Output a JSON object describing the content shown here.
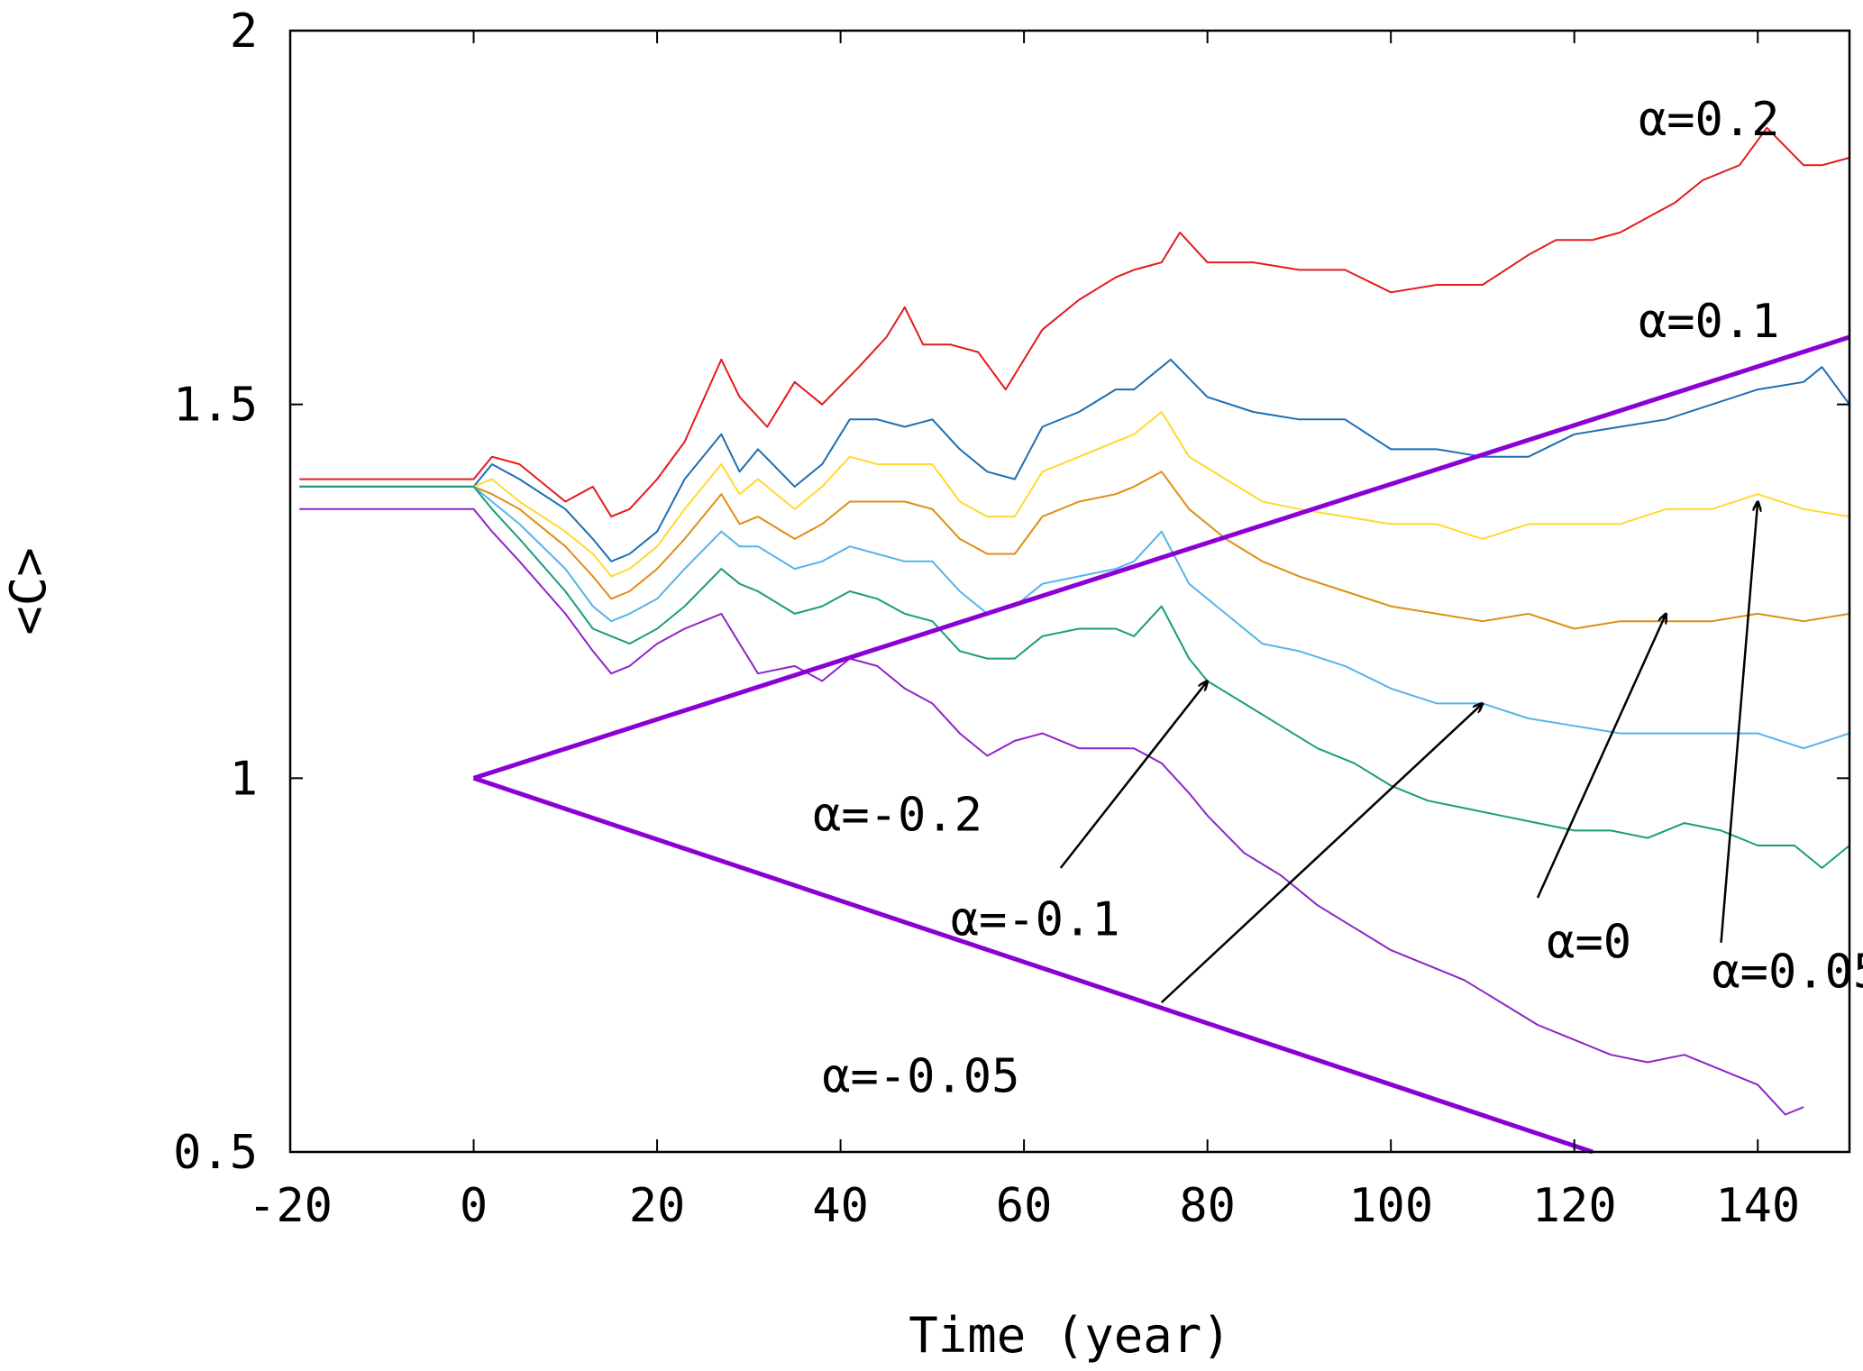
{
  "chart_data": {
    "type": "line",
    "title": "",
    "xlabel": "Time (year)",
    "ylabel": "<C>",
    "xlim": [
      -20,
      150
    ],
    "ylim": [
      0.5,
      2
    ],
    "xticks": [
      -20,
      0,
      20,
      40,
      60,
      80,
      100,
      120,
      140
    ],
    "yticks": [
      0.5,
      1,
      1.5,
      2
    ],
    "xtick_labels": [
      "-20",
      "0",
      "20",
      "40",
      "60",
      "80",
      "100",
      "120",
      "140"
    ],
    "ytick_labels": [
      "0.5",
      "1",
      "1.5",
      "2"
    ],
    "grid": false,
    "series": [
      {
        "name": "α=0.2",
        "color": "#e41a1c",
        "x": [
          -19,
          -10,
          0,
          2,
          5,
          10,
          13,
          15,
          17,
          20,
          23,
          27,
          29,
          32,
          35,
          38,
          42,
          45,
          47,
          49,
          52,
          55,
          58,
          62,
          66,
          70,
          72,
          75,
          77,
          80,
          85,
          90,
          95,
          100,
          105,
          110,
          115,
          118,
          122,
          125,
          128,
          131,
          134,
          138,
          141,
          145,
          147,
          150
        ],
        "values": [
          1.4,
          1.4,
          1.4,
          1.43,
          1.42,
          1.37,
          1.39,
          1.35,
          1.36,
          1.4,
          1.45,
          1.56,
          1.51,
          1.47,
          1.53,
          1.5,
          1.55,
          1.59,
          1.63,
          1.58,
          1.58,
          1.57,
          1.52,
          1.6,
          1.64,
          1.67,
          1.68,
          1.69,
          1.73,
          1.69,
          1.69,
          1.68,
          1.68,
          1.65,
          1.66,
          1.66,
          1.7,
          1.72,
          1.72,
          1.73,
          1.75,
          1.77,
          1.8,
          1.82,
          1.87,
          1.82,
          1.82,
          1.83
        ]
      },
      {
        "name": "α=0.1",
        "color": "#1b6fb5",
        "x": [
          -19,
          -10,
          0,
          2,
          5,
          10,
          13,
          15,
          17,
          20,
          23,
          27,
          29,
          31,
          35,
          38,
          41,
          44,
          47,
          50,
          53,
          56,
          59,
          62,
          66,
          70,
          72,
          76,
          80,
          85,
          90,
          95,
          100,
          105,
          110,
          115,
          120,
          125,
          130,
          135,
          140,
          145,
          147,
          150
        ],
        "values": [
          1.39,
          1.39,
          1.39,
          1.42,
          1.4,
          1.36,
          1.32,
          1.29,
          1.3,
          1.33,
          1.4,
          1.46,
          1.41,
          1.44,
          1.39,
          1.42,
          1.48,
          1.48,
          1.47,
          1.48,
          1.44,
          1.41,
          1.4,
          1.47,
          1.49,
          1.52,
          1.52,
          1.56,
          1.51,
          1.49,
          1.48,
          1.48,
          1.44,
          1.44,
          1.43,
          1.43,
          1.46,
          1.47,
          1.48,
          1.5,
          1.52,
          1.53,
          1.55,
          1.5
        ]
      },
      {
        "name": "α=0.05",
        "color": "#ffd92f",
        "x": [
          -19,
          -10,
          0,
          2,
          5,
          10,
          13,
          15,
          17,
          20,
          23,
          27,
          29,
          31,
          35,
          38,
          41,
          44,
          47,
          50,
          53,
          56,
          59,
          62,
          66,
          70,
          72,
          75,
          78,
          82,
          86,
          90,
          95,
          100,
          105,
          110,
          115,
          120,
          125,
          130,
          135,
          140,
          145,
          150
        ],
        "values": [
          1.39,
          1.39,
          1.39,
          1.4,
          1.37,
          1.33,
          1.3,
          1.27,
          1.28,
          1.31,
          1.36,
          1.42,
          1.38,
          1.4,
          1.36,
          1.39,
          1.43,
          1.42,
          1.42,
          1.42,
          1.37,
          1.35,
          1.35,
          1.41,
          1.43,
          1.45,
          1.46,
          1.49,
          1.43,
          1.4,
          1.37,
          1.36,
          1.35,
          1.34,
          1.34,
          1.32,
          1.34,
          1.34,
          1.34,
          1.36,
          1.36,
          1.38,
          1.36,
          1.35
        ]
      },
      {
        "name": "α=0",
        "color": "#e08d14",
        "x": [
          -19,
          -10,
          0,
          2,
          5,
          10,
          13,
          15,
          17,
          20,
          23,
          27,
          29,
          31,
          35,
          38,
          41,
          44,
          47,
          50,
          53,
          56,
          59,
          62,
          66,
          70,
          72,
          75,
          78,
          82,
          86,
          90,
          95,
          100,
          105,
          110,
          115,
          120,
          125,
          130,
          135,
          140,
          145,
          150
        ],
        "values": [
          1.39,
          1.39,
          1.39,
          1.38,
          1.36,
          1.31,
          1.27,
          1.24,
          1.25,
          1.28,
          1.32,
          1.38,
          1.34,
          1.35,
          1.32,
          1.34,
          1.37,
          1.37,
          1.37,
          1.36,
          1.32,
          1.3,
          1.3,
          1.35,
          1.37,
          1.38,
          1.39,
          1.41,
          1.36,
          1.32,
          1.29,
          1.27,
          1.25,
          1.23,
          1.22,
          1.21,
          1.22,
          1.2,
          1.21,
          1.21,
          1.21,
          1.22,
          1.21,
          1.22
        ]
      },
      {
        "name": "α=-0.05",
        "color": "#56b4e9",
        "x": [
          -19,
          -10,
          0,
          2,
          5,
          10,
          13,
          15,
          17,
          20,
          23,
          27,
          29,
          31,
          35,
          38,
          41,
          44,
          47,
          50,
          53,
          56,
          59,
          62,
          66,
          70,
          72,
          75,
          78,
          82,
          86,
          90,
          95,
          100,
          105,
          110,
          115,
          120,
          125,
          130,
          135,
          140,
          145,
          150
        ],
        "values": [
          1.39,
          1.39,
          1.39,
          1.37,
          1.34,
          1.28,
          1.23,
          1.21,
          1.22,
          1.24,
          1.28,
          1.33,
          1.31,
          1.31,
          1.28,
          1.29,
          1.31,
          1.3,
          1.29,
          1.29,
          1.25,
          1.22,
          1.23,
          1.26,
          1.27,
          1.28,
          1.29,
          1.33,
          1.26,
          1.22,
          1.18,
          1.17,
          1.15,
          1.12,
          1.1,
          1.1,
          1.08,
          1.07,
          1.06,
          1.06,
          1.06,
          1.06,
          1.04,
          1.06
        ]
      },
      {
        "name": "α=-0.1",
        "color": "#1a9e77",
        "x": [
          -19,
          -10,
          0,
          2,
          5,
          10,
          13,
          15,
          17,
          20,
          23,
          27,
          29,
          31,
          35,
          38,
          41,
          44,
          47,
          50,
          53,
          56,
          59,
          62,
          66,
          70,
          72,
          75,
          78,
          80,
          84,
          88,
          92,
          96,
          100,
          104,
          108,
          112,
          116,
          120,
          124,
          128,
          132,
          136,
          140,
          144,
          147,
          150
        ],
        "values": [
          1.39,
          1.39,
          1.39,
          1.36,
          1.32,
          1.25,
          1.2,
          1.19,
          1.18,
          1.2,
          1.23,
          1.28,
          1.26,
          1.25,
          1.22,
          1.23,
          1.25,
          1.24,
          1.22,
          1.21,
          1.17,
          1.16,
          1.16,
          1.19,
          1.2,
          1.2,
          1.19,
          1.23,
          1.16,
          1.13,
          1.1,
          1.07,
          1.04,
          1.02,
          0.99,
          0.97,
          0.96,
          0.95,
          0.94,
          0.93,
          0.93,
          0.92,
          0.94,
          0.93,
          0.91,
          0.91,
          0.88,
          0.91
        ]
      },
      {
        "name": "α=-0.2",
        "color": "#8e24c9",
        "x": [
          -19,
          -10,
          0,
          2,
          5,
          10,
          13,
          15,
          17,
          20,
          23,
          27,
          29,
          31,
          35,
          38,
          41,
          44,
          47,
          50,
          53,
          56,
          59,
          62,
          66,
          70,
          72,
          75,
          78,
          80,
          84,
          88,
          92,
          96,
          100,
          104,
          108,
          112,
          116,
          120,
          124,
          128,
          132,
          136,
          140,
          143,
          145
        ],
        "values": [
          1.36,
          1.36,
          1.36,
          1.33,
          1.29,
          1.22,
          1.17,
          1.14,
          1.15,
          1.18,
          1.2,
          1.22,
          1.18,
          1.14,
          1.15,
          1.13,
          1.16,
          1.15,
          1.12,
          1.1,
          1.06,
          1.03,
          1.05,
          1.06,
          1.04,
          1.04,
          1.04,
          1.02,
          0.98,
          0.95,
          0.9,
          0.87,
          0.83,
          0.8,
          0.77,
          0.75,
          0.73,
          0.7,
          0.67,
          0.65,
          0.63,
          0.62,
          0.63,
          0.61,
          0.59,
          0.55,
          0.56
        ]
      },
      {
        "name": "upper-envelope",
        "color": "#8b00d4",
        "x": [
          0,
          150
        ],
        "values": [
          1.0,
          1.59
        ]
      },
      {
        "name": "lower-envelope",
        "color": "#8b00d4",
        "x": [
          0,
          122
        ],
        "values": [
          1.0,
          0.5
        ]
      }
    ],
    "annotations": [
      {
        "label": "α=0.2",
        "text_at": [
          127,
          1.86
        ]
      },
      {
        "label": "α=0.1",
        "text_at": [
          127,
          1.59
        ]
      },
      {
        "label": "α=-0.2",
        "text_at": [
          37,
          0.93
        ]
      },
      {
        "label": "α=-0.1",
        "text_at": [
          52,
          0.79
        ],
        "arrow_from": [
          64,
          0.88
        ],
        "arrow_to": [
          80,
          1.13
        ]
      },
      {
        "label": "α=-0.05",
        "text_at": [
          38,
          0.58
        ],
        "arrow_from": [
          75,
          0.7
        ],
        "arrow_to": [
          110,
          1.1
        ]
      },
      {
        "label": "α=0",
        "text_at": [
          117,
          0.76
        ],
        "arrow_from": [
          116,
          0.84
        ],
        "arrow_to": [
          130,
          1.22
        ]
      },
      {
        "label": "α=0.05",
        "text_at": [
          135,
          0.72
        ],
        "arrow_from": [
          136,
          0.78
        ],
        "arrow_to": [
          140,
          1.37
        ]
      }
    ]
  }
}
